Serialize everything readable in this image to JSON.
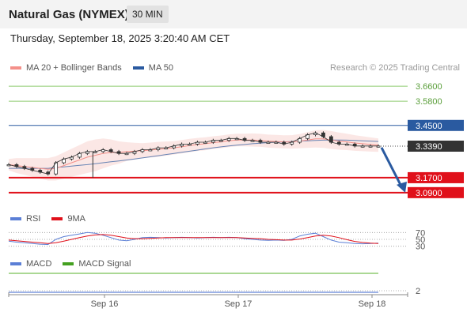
{
  "header": {
    "title": "Natural Gas (NYMEX)",
    "interval": "30 MIN"
  },
  "datetime": "Thursday, September 18, 2025 3:20:40 AM CET",
  "legend_main": [
    {
      "label": "MA 20 + Bollinger Bands",
      "color": "#f4908a"
    },
    {
      "label": "MA 50",
      "color": "#2a5aa0"
    }
  ],
  "credit": "Research © 2025 Trading Central",
  "legend_rsi": [
    {
      "label": "RSI",
      "color": "#5b7fd6"
    },
    {
      "label": "9MA",
      "color": "#e0101a"
    }
  ],
  "legend_macd": [
    {
      "label": "MACD",
      "color": "#5b7fd6"
    },
    {
      "label": "MACD Signal",
      "color": "#44a020"
    }
  ],
  "colors": {
    "resistance": "#8fcc70",
    "pivot": "#2a5aa0",
    "support": "#e0101a",
    "last": "#333333",
    "arrow": "#2a5aa0"
  },
  "chart_data": {
    "type": "line",
    "instrument": "Natural Gas (NYMEX)",
    "timeframe": "30 MIN",
    "ylim": [
      3.03,
      3.72
    ],
    "x_ticks": [
      "Sep 16",
      "Sep 17",
      "Sep 18"
    ],
    "levels": [
      {
        "label": "3.6600",
        "value": 3.66,
        "kind": "resistance"
      },
      {
        "label": "3.5800",
        "value": 3.58,
        "kind": "resistance"
      },
      {
        "label": "3.4500",
        "value": 3.45,
        "kind": "pivot"
      },
      {
        "label": "3.3390",
        "value": 3.339,
        "kind": "last"
      },
      {
        "label": "3.1700",
        "value": 3.17,
        "kind": "support"
      },
      {
        "label": "3.0900",
        "value": 3.09,
        "kind": "support"
      }
    ],
    "forecast_target": 3.09,
    "price": [
      3.24,
      3.23,
      3.22,
      3.21,
      3.2,
      3.19,
      3.25,
      3.27,
      3.28,
      3.3,
      3.31,
      3.31,
      3.32,
      3.31,
      3.3,
      3.3,
      3.31,
      3.32,
      3.32,
      3.33,
      3.33,
      3.34,
      3.35,
      3.35,
      3.36,
      3.36,
      3.37,
      3.37,
      3.38,
      3.38,
      3.37,
      3.37,
      3.36,
      3.36,
      3.36,
      3.35,
      3.36,
      3.38,
      3.4,
      3.41,
      3.39,
      3.36,
      3.35,
      3.35,
      3.34,
      3.34,
      3.34,
      3.34
    ],
    "ma20": [
      3.24,
      3.235,
      3.23,
      3.225,
      3.22,
      3.215,
      3.22,
      3.235,
      3.25,
      3.265,
      3.28,
      3.29,
      3.3,
      3.305,
      3.305,
      3.31,
      3.312,
      3.315,
      3.318,
      3.322,
      3.326,
      3.33,
      3.336,
      3.342,
      3.348,
      3.352,
      3.358,
      3.362,
      3.368,
      3.372,
      3.372,
      3.372,
      3.37,
      3.366,
      3.364,
      3.362,
      3.362,
      3.366,
      3.372,
      3.378,
      3.378,
      3.372,
      3.366,
      3.362,
      3.356,
      3.352,
      3.348,
      3.344
    ],
    "ma50": [
      3.22,
      3.22,
      3.22,
      3.22,
      3.22,
      3.22,
      3.225,
      3.228,
      3.232,
      3.236,
      3.24,
      3.245,
      3.25,
      3.255,
      3.26,
      3.265,
      3.27,
      3.276,
      3.282,
      3.288,
      3.294,
      3.3,
      3.306,
      3.312,
      3.318,
      3.324,
      3.33,
      3.335,
      3.34,
      3.344,
      3.348,
      3.352,
      3.355,
      3.358,
      3.36,
      3.362,
      3.364,
      3.366,
      3.368,
      3.37,
      3.371,
      3.372,
      3.372,
      3.371,
      3.37,
      3.368,
      3.366,
      3.364
    ],
    "bb_width": [
      0.03,
      0.04,
      0.045,
      0.05,
      0.055,
      0.06,
      0.065,
      0.07,
      0.075,
      0.08,
      0.085,
      0.085,
      0.08,
      0.07,
      0.06,
      0.05,
      0.045,
      0.04,
      0.04,
      0.04,
      0.038,
      0.036,
      0.036,
      0.036,
      0.035,
      0.035,
      0.034,
      0.034,
      0.034,
      0.034,
      0.034,
      0.035,
      0.035,
      0.035,
      0.035,
      0.035,
      0.036,
      0.038,
      0.042,
      0.046,
      0.048,
      0.048,
      0.046,
      0.044,
      0.042,
      0.04,
      0.038,
      0.036
    ],
    "rsi_levels": [
      {
        "label": "70",
        "value": 70
      },
      {
        "label": "50",
        "value": 50
      },
      {
        "label": "30",
        "value": 30
      }
    ],
    "rsi": [
      45,
      42,
      40,
      38,
      36,
      35,
      50,
      58,
      62,
      66,
      70,
      68,
      62,
      55,
      48,
      46,
      50,
      55,
      56,
      55,
      54,
      55,
      56,
      55,
      54,
      55,
      56,
      55,
      56,
      55,
      52,
      50,
      48,
      47,
      48,
      47,
      50,
      60,
      65,
      68,
      58,
      48,
      42,
      40,
      38,
      37,
      38,
      39
    ],
    "rsi_ma": [
      48,
      46,
      44,
      42,
      40,
      38,
      40,
      45,
      50,
      55,
      60,
      63,
      64,
      62,
      58,
      54,
      52,
      52,
      53,
      54,
      55,
      55,
      55,
      55,
      55,
      55,
      55,
      55,
      55,
      55,
      54,
      53,
      52,
      50,
      49,
      48,
      48,
      51,
      55,
      60,
      62,
      60,
      55,
      49,
      44,
      41,
      39,
      38
    ],
    "macd_label": "2"
  }
}
